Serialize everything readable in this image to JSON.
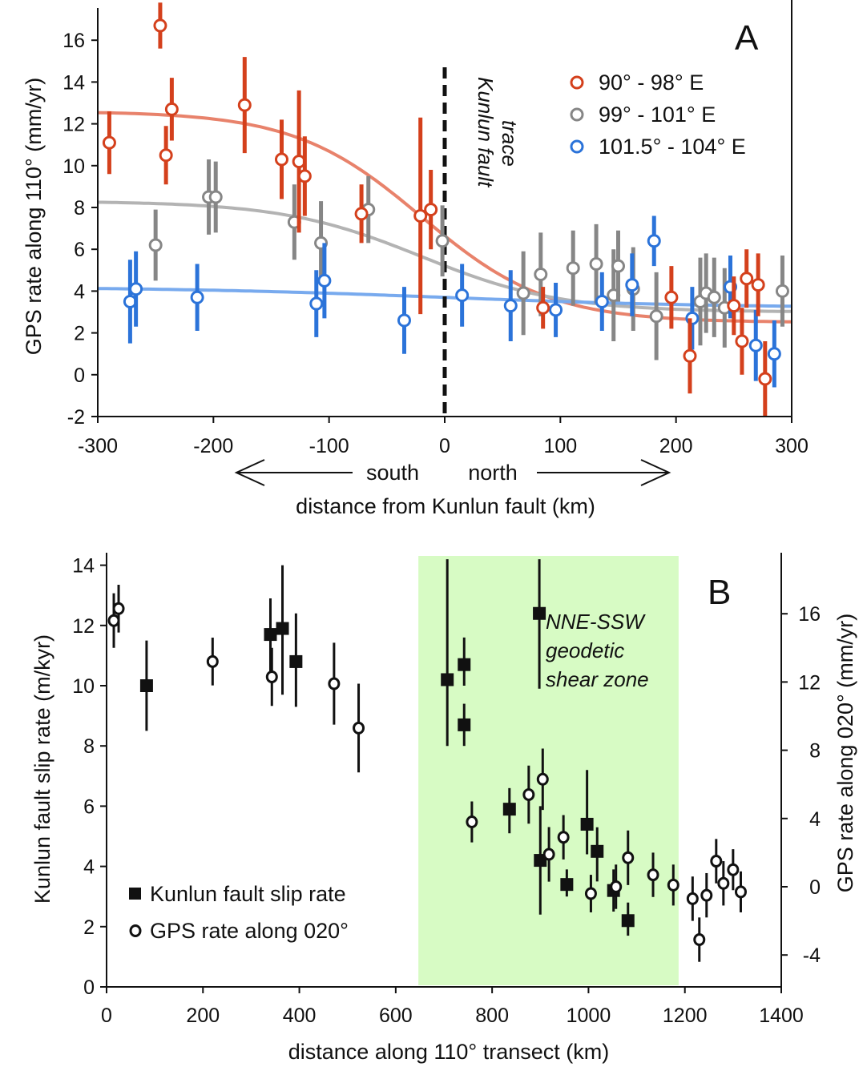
{
  "chart_data": [
    {
      "type": "scatter",
      "panel_label": "A",
      "xlabel": "distance from Kunlun fault (km)",
      "ylabel": "GPS rate along 110° (mm/yr)",
      "xlim": [
        -300,
        300
      ],
      "ylim": [
        -2,
        17
      ],
      "x_ticks": [
        -300,
        -200,
        -100,
        0,
        100,
        200,
        300
      ],
      "y_ticks": [
        -2,
        0,
        2,
        4,
        6,
        8,
        10,
        12,
        14,
        16
      ],
      "direction_left": "south",
      "direction_right": "north",
      "fault_annotation_line1": "Kunlun fault",
      "fault_annotation_line2": "trace",
      "legend_position": "top-right",
      "series": [
        {
          "name": "90° - 98° E",
          "color": "#d4401c",
          "curve_color": "#e8826b",
          "points": [
            {
              "x": -290,
              "y": 11.1,
              "err": 1.5
            },
            {
              "x": -246,
              "y": 16.7,
              "err": 1.1
            },
            {
              "x": -241,
              "y": 10.5,
              "err": 1.4
            },
            {
              "x": -236,
              "y": 12.7,
              "err": 1.5
            },
            {
              "x": -173,
              "y": 12.9,
              "err": 2.3
            },
            {
              "x": -141,
              "y": 10.3,
              "err": 1.9
            },
            {
              "x": -126,
              "y": 10.2,
              "err": 3.4
            },
            {
              "x": -121,
              "y": 9.5,
              "err": 1.9
            },
            {
              "x": -72,
              "y": 7.7,
              "err": 1.4
            },
            {
              "x": -21,
              "y": 7.6,
              "err": 4.7
            },
            {
              "x": -12,
              "y": 7.9,
              "err": 1.9
            },
            {
              "x": 85,
              "y": 3.2,
              "err": 1.0
            },
            {
              "x": 196,
              "y": 3.7,
              "err": 1.5
            },
            {
              "x": 212,
              "y": 0.9,
              "err": 1.8
            },
            {
              "x": 250,
              "y": 3.3,
              "err": 1.4
            },
            {
              "x": 257,
              "y": 1.6,
              "err": 1.6
            },
            {
              "x": 261,
              "y": 4.6,
              "err": 1.4
            },
            {
              "x": 271,
              "y": 4.3,
              "err": 1.5
            },
            {
              "x": 277,
              "y": -0.2,
              "err": 1.8
            }
          ],
          "fit_curve": {
            "left_value": 12.6,
            "right_value": 2.5,
            "center_km": -20,
            "width_km": 55
          }
        },
        {
          "name": "99° - 101° E",
          "color": "#868686",
          "curve_color": "#b3b3b3",
          "points": [
            {
              "x": -250,
              "y": 6.2,
              "err": 1.7
            },
            {
              "x": -204,
              "y": 8.5,
              "err": 1.8
            },
            {
              "x": -198,
              "y": 8.5,
              "err": 1.7
            },
            {
              "x": -130,
              "y": 7.3,
              "err": 1.8
            },
            {
              "x": -107,
              "y": 6.3,
              "err": 2.0
            },
            {
              "x": -66,
              "y": 7.9,
              "err": 1.6
            },
            {
              "x": -2,
              "y": 6.4,
              "err": 1.7
            },
            {
              "x": 68,
              "y": 3.9,
              "err": 2.0
            },
            {
              "x": 83,
              "y": 4.8,
              "err": 2.0
            },
            {
              "x": 111,
              "y": 5.1,
              "err": 1.8
            },
            {
              "x": 131,
              "y": 5.3,
              "err": 1.9
            },
            {
              "x": 146,
              "y": 3.8,
              "err": 2.2
            },
            {
              "x": 150,
              "y": 5.2,
              "err": 1.7
            },
            {
              "x": 163,
              "y": 4.1,
              "err": 2.0
            },
            {
              "x": 183,
              "y": 2.8,
              "err": 2.1
            },
            {
              "x": 221,
              "y": 3.5,
              "err": 2.1
            },
            {
              "x": 226,
              "y": 3.9,
              "err": 1.9
            },
            {
              "x": 233,
              "y": 3.7,
              "err": 1.9
            },
            {
              "x": 242,
              "y": 3.2,
              "err": 1.9
            },
            {
              "x": 292,
              "y": 4.0,
              "err": 1.7
            }
          ],
          "fit_curve": {
            "left_value": 8.3,
            "right_value": 3.0,
            "center_km": -20,
            "width_km": 60
          }
        },
        {
          "name": "101.5° - 104° E",
          "color": "#2b73d9",
          "curve_color": "#78aaee",
          "points": [
            {
              "x": -272,
              "y": 3.5,
              "err": 2.0
            },
            {
              "x": -267,
              "y": 4.1,
              "err": 1.8
            },
            {
              "x": -214,
              "y": 3.7,
              "err": 1.6
            },
            {
              "x": -111,
              "y": 3.4,
              "err": 1.6
            },
            {
              "x": -104,
              "y": 4.5,
              "err": 1.8
            },
            {
              "x": -35,
              "y": 2.6,
              "err": 1.6
            },
            {
              "x": 15,
              "y": 3.8,
              "err": 1.5
            },
            {
              "x": 57,
              "y": 3.3,
              "err": 1.7
            },
            {
              "x": 96,
              "y": 3.1,
              "err": 1.3
            },
            {
              "x": 136,
              "y": 3.5,
              "err": 1.4
            },
            {
              "x": 162,
              "y": 4.3,
              "err": 1.5
            },
            {
              "x": 181,
              "y": 6.4,
              "err": 1.2
            },
            {
              "x": 214,
              "y": 2.7,
              "err": 1.5
            },
            {
              "x": 247,
              "y": 4.2,
              "err": 1.5
            },
            {
              "x": 269,
              "y": 1.4,
              "err": 1.7
            },
            {
              "x": 285,
              "y": 1.0,
              "err": 1.6
            }
          ],
          "fit_curve": {
            "left_value": 4.2,
            "right_value": 3.2,
            "center_km": 0,
            "width_km": 120
          }
        }
      ]
    },
    {
      "type": "scatter",
      "panel_label": "B",
      "xlabel": "distance along 110° transect (km)",
      "ylabel": "Kunlun fault slip rate (m/kyr)",
      "y2label": "GPS rate along 020° (mm/yr)",
      "xlim": [
        0,
        1400
      ],
      "ylim": [
        0,
        14.2
      ],
      "y2lim": [
        -6,
        18.75
      ],
      "x_ticks": [
        0,
        200,
        400,
        600,
        800,
        1000,
        1200,
        1400
      ],
      "y_ticks": [
        0,
        2,
        4,
        6,
        8,
        10,
        12,
        14
      ],
      "y2_ticks": [
        -4,
        0,
        4,
        8,
        12,
        16
      ],
      "shaded_region": {
        "x_start": 647,
        "x_end": 1187,
        "color": "#d7fbc4",
        "label_lines": [
          "NNE-SSW",
          "geodetic",
          "shear zone"
        ]
      },
      "legend_position": "bottom-left",
      "series": [
        {
          "name": "Kunlun fault slip rate",
          "axis": "left",
          "marker": "square",
          "points": [
            {
              "x": 83,
              "y": 10.0,
              "lo": 8.5,
              "hi": 11.5
            },
            {
              "x": 340,
              "y": 11.7,
              "lo": 10.2,
              "hi": 12.9
            },
            {
              "x": 365,
              "y": 11.9,
              "lo": 9.7,
              "hi": 14.0
            },
            {
              "x": 393,
              "y": 10.8,
              "lo": 9.3,
              "hi": 12.4
            },
            {
              "x": 707,
              "y": 10.2,
              "lo": 8.0,
              "hi": 14.2
            },
            {
              "x": 742,
              "y": 10.7,
              "lo": 10.0,
              "hi": 11.6
            },
            {
              "x": 742,
              "y": 8.7,
              "lo": 8.0,
              "hi": 9.4
            },
            {
              "x": 836,
              "y": 5.9,
              "lo": 5.1,
              "hi": 6.6
            },
            {
              "x": 898,
              "y": 12.4,
              "lo": 9.9,
              "hi": 14.2
            },
            {
              "x": 900,
              "y": 4.2,
              "lo": 2.4,
              "hi": 6.0
            },
            {
              "x": 955,
              "y": 3.4,
              "lo": 3.0,
              "hi": 3.9
            },
            {
              "x": 997,
              "y": 5.4,
              "lo": 4.4,
              "hi": 7.2
            },
            {
              "x": 1018,
              "y": 4.5,
              "lo": 3.5,
              "hi": 5.3
            },
            {
              "x": 1052,
              "y": 3.2,
              "lo": 2.5,
              "hi": 3.9
            },
            {
              "x": 1082,
              "y": 2.2,
              "lo": 1.7,
              "hi": 2.8
            }
          ]
        },
        {
          "name": "GPS rate along 020°",
          "axis": "right",
          "marker": "open-circle",
          "points": [
            {
              "x": 15,
              "y": 15.6,
              "err": 1.6
            },
            {
              "x": 25,
              "y": 16.3,
              "err": 1.4
            },
            {
              "x": 220,
              "y": 13.2,
              "err": 1.4
            },
            {
              "x": 343,
              "y": 12.3,
              "err": 1.7
            },
            {
              "x": 472,
              "y": 11.9,
              "err": 2.4
            },
            {
              "x": 523,
              "y": 9.3,
              "err": 2.6
            },
            {
              "x": 758,
              "y": 3.8,
              "err": 1.2
            },
            {
              "x": 876,
              "y": 5.4,
              "err": 1.7
            },
            {
              "x": 905,
              "y": 6.3,
              "err": 1.8
            },
            {
              "x": 918,
              "y": 1.9,
              "err": 1.6
            },
            {
              "x": 948,
              "y": 2.9,
              "err": 1.3
            },
            {
              "x": 1005,
              "y": -0.4,
              "err": 1.1
            },
            {
              "x": 1057,
              "y": 0.0,
              "err": 1.3
            },
            {
              "x": 1082,
              "y": 1.7,
              "err": 1.6
            },
            {
              "x": 1134,
              "y": 0.7,
              "err": 1.3
            },
            {
              "x": 1176,
              "y": 0.1,
              "err": 1.2
            },
            {
              "x": 1216,
              "y": -0.7,
              "err": 1.3
            },
            {
              "x": 1230,
              "y": -3.1,
              "err": 1.3
            },
            {
              "x": 1245,
              "y": -0.5,
              "err": 1.3
            },
            {
              "x": 1265,
              "y": 1.5,
              "err": 1.3
            },
            {
              "x": 1280,
              "y": 0.2,
              "err": 1.3
            },
            {
              "x": 1300,
              "y": 1.0,
              "err": 1.2
            },
            {
              "x": 1316,
              "y": -0.3,
              "err": 1.2
            }
          ]
        }
      ]
    }
  ]
}
